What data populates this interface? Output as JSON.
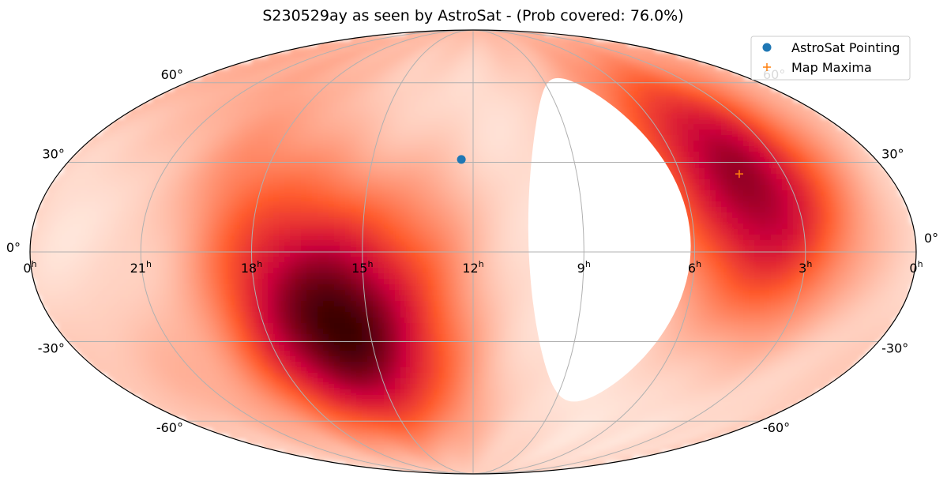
{
  "chart_data": {
    "type": "heatmap",
    "projection": "mollweide",
    "title": "S230529ay as seen by AstroSat - (Prob covered: 76.0%)",
    "grid": true,
    "legend_position": "top-right",
    "colormap": "white-orange-red-darkred",
    "colors": {
      "sky_outline": "#000000",
      "grid": "#b0b0b0",
      "pointing_marker": "#1f77b4",
      "maxima_marker": "#ff7f0e",
      "cmap_low": "#fff5ee",
      "cmap_mid": "#ff5a2c",
      "cmap_high": "#c8003a",
      "cmap_peak": "#3a0000"
    },
    "ra_ticks": [
      {
        "ra_hours": 24,
        "value": "0",
        "unit": "h"
      },
      {
        "ra_hours": 21,
        "value": "21",
        "unit": "h"
      },
      {
        "ra_hours": 18,
        "value": "18",
        "unit": "h"
      },
      {
        "ra_hours": 15,
        "value": "15",
        "unit": "h"
      },
      {
        "ra_hours": 12,
        "value": "12",
        "unit": "h"
      },
      {
        "ra_hours": 9,
        "value": "9",
        "unit": "h"
      },
      {
        "ra_hours": 6,
        "value": "6",
        "unit": "h"
      },
      {
        "ra_hours": 3,
        "value": "3",
        "unit": "h"
      },
      {
        "ra_hours": 0,
        "value": "0",
        "unit": "h"
      }
    ],
    "dec_ticks": [
      {
        "dec_deg": 60,
        "label": "60°"
      },
      {
        "dec_deg": 30,
        "label": "30°"
      },
      {
        "dec_deg": 0,
        "label": "0°"
      },
      {
        "dec_deg": -30,
        "label": "-30°"
      },
      {
        "dec_deg": -60,
        "label": "-60°"
      }
    ],
    "hotspots": [
      {
        "ra_hours": 4.3,
        "dec_deg": 26,
        "intensity": 1.0
      },
      {
        "ra_hours": 5.3,
        "dec_deg": 45,
        "intensity": 0.75
      },
      {
        "ra_hours": 3.2,
        "dec_deg": 10,
        "intensity": 0.6
      },
      {
        "ra_hours": 4.6,
        "dec_deg": -8,
        "intensity": 0.55
      },
      {
        "ra_hours": 16.6,
        "dec_deg": -33,
        "intensity": 0.95
      },
      {
        "ra_hours": 15.3,
        "dec_deg": -20,
        "intensity": 0.8
      },
      {
        "ra_hours": 17.0,
        "dec_deg": -8,
        "intensity": 0.75
      },
      {
        "ra_hours": 14.4,
        "dec_deg": -40,
        "intensity": 0.7
      },
      {
        "ra_hours": 18.3,
        "dec_deg": 20,
        "intensity": 0.55
      },
      {
        "ra_hours": 13.6,
        "dec_deg": 5,
        "intensity": 0.5
      },
      {
        "ra_hours": 20.5,
        "dec_deg": 65,
        "intensity": 0.4
      },
      {
        "ra_hours": 22.0,
        "dec_deg": -45,
        "intensity": 0.35
      }
    ],
    "occultation_region": {
      "label": "",
      "center_ra_hours": 8.3,
      "center_dec_deg": 5,
      "radius_deg": 60
    },
    "series": [
      {
        "name": "AstroSat Pointing",
        "marker": "circle",
        "color": "#1f77b4",
        "points": [
          {
            "ra_hours": 12.35,
            "dec_deg": 31
          }
        ]
      },
      {
        "name": "Map Maxima",
        "marker": "plus",
        "color": "#ff7f0e",
        "points": [
          {
            "ra_hours": 4.3,
            "dec_deg": 26
          }
        ]
      }
    ]
  }
}
